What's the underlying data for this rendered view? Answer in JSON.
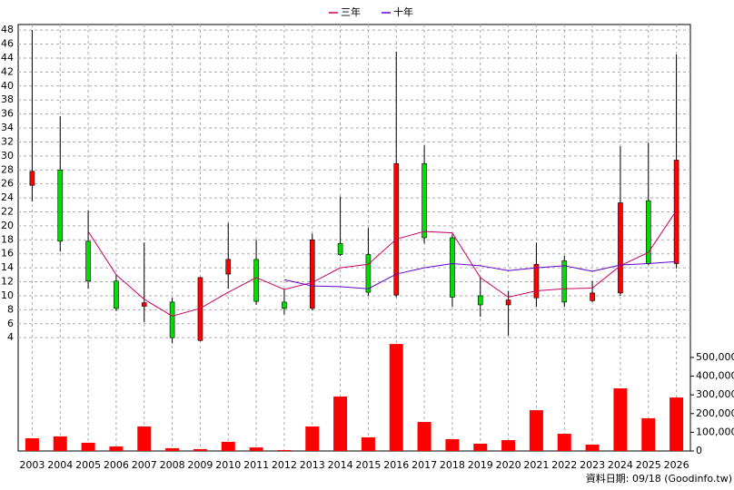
{
  "chart_data": {
    "type": "candlestick",
    "categories": [
      "2003",
      "2004",
      "2005",
      "2006",
      "2007",
      "2008",
      "2009",
      "2010",
      "2011",
      "2012",
      "2013",
      "2014",
      "2015",
      "2016",
      "2017",
      "2018",
      "2019",
      "2020",
      "2021",
      "2022",
      "2023",
      "2024",
      "2025",
      "2026"
    ],
    "open": [
      25.8,
      28,
      17.8,
      12.1,
      8.5,
      9.1,
      3.6,
      13.1,
      15.2,
      9.1,
      8.2,
      17.5,
      15.9,
      10.1,
      28.9,
      18.3,
      10,
      8.7,
      9.7,
      15,
      9.3,
      10.4,
      23.6,
      14.6
    ],
    "high": [
      48,
      35.7,
      22.2,
      13.1,
      17.6,
      9.7,
      12.7,
      20.4,
      18,
      11,
      18.9,
      24.2,
      19.7,
      44.9,
      31.5,
      18.8,
      12.7,
      10.7,
      17.6,
      15.7,
      12.1,
      31.4,
      31.9,
      44.5
    ],
    "low": [
      23.5,
      16.3,
      11,
      7.8,
      6.2,
      3.2,
      3.5,
      11,
      8.7,
      7.3,
      7.9,
      15.7,
      10,
      9.8,
      17.5,
      8.4,
      7,
      4.3,
      8.4,
      8.4,
      9.1,
      10,
      14.4,
      13.9
    ],
    "close": [
      27.8,
      17.8,
      12.1,
      8.2,
      9,
      4,
      12.6,
      15.2,
      9.2,
      8.2,
      18,
      15.9,
      10.5,
      28.9,
      18.3,
      9.8,
      8.7,
      9.4,
      14.5,
      9.1,
      10.4,
      23.3,
      14.6,
      29.4
    ],
    "up_color": "#ff0000",
    "down_color": "#00dd00",
    "series": [
      {
        "name": "三年",
        "color": "#cc0066",
        "values": [
          null,
          null,
          19.2,
          13,
          9.5,
          7.1,
          8.2,
          10.5,
          12.6,
          10.9,
          11.9,
          14,
          14.5,
          18.1,
          19.2,
          19,
          12.6,
          9.8,
          10.7,
          11,
          11.1,
          14.3,
          16.2,
          22.2
        ]
      },
      {
        "name": "十年",
        "color": "#6600cc",
        "values": [
          null,
          null,
          null,
          null,
          null,
          null,
          null,
          null,
          null,
          12.3,
          11.4,
          11.3,
          11,
          13.1,
          14,
          14.6,
          14.3,
          13.6,
          14,
          14.3,
          13.5,
          14.4,
          14.6,
          14.9
        ]
      }
    ],
    "volume": {
      "axis": "y2",
      "color": "#ff0000",
      "values": [
        68000,
        78000,
        44000,
        24000,
        131000,
        15000,
        10000,
        49000,
        19000,
        5000,
        131000,
        291000,
        73000,
        572000,
        155000,
        63000,
        39000,
        58000,
        218000,
        92000,
        34000,
        335000,
        175000,
        286000
      ]
    },
    "ylim": [
      -12.2,
      48.8
    ],
    "yticks": [
      4,
      6,
      8,
      10,
      12,
      14,
      16,
      18,
      20,
      22,
      24,
      26,
      28,
      30,
      32,
      34,
      36,
      38,
      40,
      42,
      44,
      46,
      48
    ],
    "y2lim": [
      0,
      2280000
    ],
    "y2ticks": [
      0,
      {
        "value": 100000,
        "label": "100,000"
      },
      {
        "value": 200000,
        "label": "200,000"
      },
      {
        "value": 300000,
        "label": "300,000"
      },
      {
        "value": 400000,
        "label": "400,000"
      },
      {
        "value": 500000,
        "label": "500,000"
      }
    ],
    "grid": true,
    "footer": "資料日期: 09/18 (Goodinfo.tw)"
  }
}
